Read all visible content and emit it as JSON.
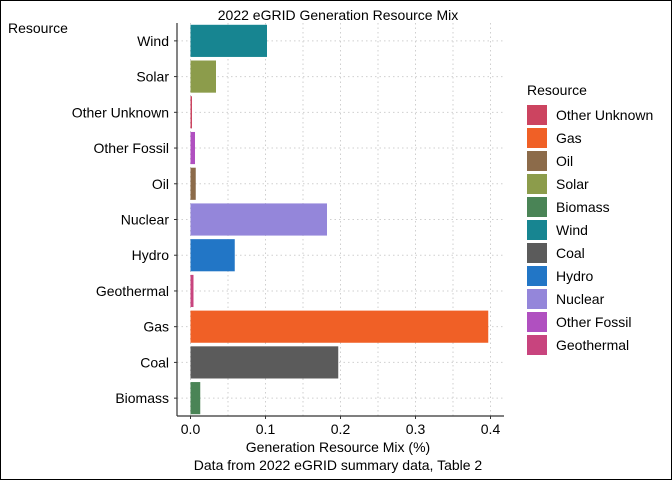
{
  "chart_data": {
    "type": "bar",
    "orientation": "horizontal",
    "title": "2022 eGRID Generation Resource Mix",
    "xlabel": "Generation Resource Mix (%)",
    "caption": "Data from 2022 eGRID summary data, Table 2",
    "ylabel": "Resource",
    "xlim": [
      -0.018,
      0.418
    ],
    "xticks": [
      "0.0",
      "0.1",
      "0.2",
      "0.3",
      "0.4"
    ],
    "grid": true,
    "legend_position": "right",
    "legend_title": "Resource",
    "categories": [
      "Wind",
      "Solar",
      "Other Unknown",
      "Other Fossil",
      "Oil",
      "Nuclear",
      "Hydro",
      "Geothermal",
      "Gas",
      "Coal",
      "Biomass"
    ],
    "values": [
      0.102,
      0.034,
      0.002,
      0.006,
      0.007,
      0.182,
      0.059,
      0.004,
      0.397,
      0.197,
      0.013
    ],
    "colors": [
      "#178591",
      "#8C9C4B",
      "#CC4460",
      "#B050C0",
      "#8C6B4A",
      "#9486DA",
      "#2276C6",
      "#C8447E",
      "#F06026",
      "#5B5B5B",
      "#4A8456"
    ],
    "legend": [
      {
        "label": "Other Unknown",
        "color": "#CC4460"
      },
      {
        "label": "Gas",
        "color": "#F06026"
      },
      {
        "label": "Oil",
        "color": "#8C6B4A"
      },
      {
        "label": "Solar",
        "color": "#8C9C4B"
      },
      {
        "label": "Biomass",
        "color": "#4A8456"
      },
      {
        "label": "Wind",
        "color": "#178591"
      },
      {
        "label": "Coal",
        "color": "#5B5B5B"
      },
      {
        "label": "Hydro",
        "color": "#2276C6"
      },
      {
        "label": "Nuclear",
        "color": "#9486DA"
      },
      {
        "label": "Other Fossil",
        "color": "#B050C0"
      },
      {
        "label": "Geothermal",
        "color": "#C8447E"
      }
    ]
  }
}
